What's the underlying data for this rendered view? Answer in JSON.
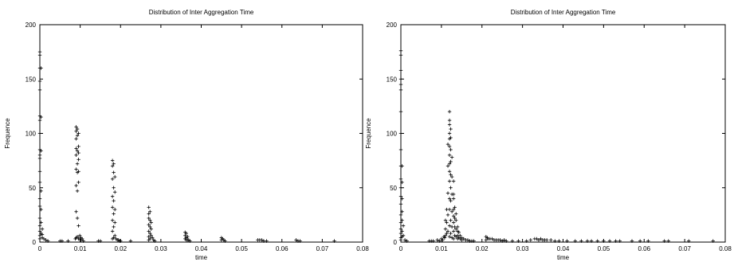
{
  "chart_data": [
    {
      "type": "scatter",
      "title": "Distribution of Inter Aggregation Time",
      "xlabel": "time",
      "ylabel": "Frequence",
      "xlim": [
        0,
        0.08
      ],
      "ylim": [
        0,
        200
      ],
      "xticks": [
        "0",
        "0.01",
        "0.02",
        "0.03",
        "0.04",
        "0.05",
        "0.06",
        "0.07",
        "0.08"
      ],
      "yticks": [
        "0",
        "50",
        "100",
        "150",
        "200"
      ],
      "grid": false,
      "marker": "+",
      "points": [
        [
          0,
          175
        ],
        [
          0,
          172
        ],
        [
          0,
          160
        ],
        [
          0,
          148
        ],
        [
          0,
          140
        ],
        [
          0,
          116
        ],
        [
          0,
          112
        ],
        [
          0,
          100
        ],
        [
          0,
          85
        ],
        [
          0,
          80
        ],
        [
          0,
          77
        ],
        [
          0,
          65
        ],
        [
          0,
          55
        ],
        [
          0,
          40
        ],
        [
          0,
          33
        ],
        [
          0,
          22
        ],
        [
          0,
          15
        ],
        [
          0,
          10
        ],
        [
          0,
          6
        ],
        [
          0,
          3
        ],
        [
          0.0003,
          160
        ],
        [
          0.0003,
          115
        ],
        [
          0.0003,
          84
        ],
        [
          0.0003,
          47
        ],
        [
          0.0003,
          30
        ],
        [
          0.0003,
          18
        ],
        [
          0.0003,
          8
        ],
        [
          0.0006,
          12
        ],
        [
          0.0006,
          7
        ],
        [
          0.0006,
          4
        ],
        [
          0.001,
          3
        ],
        [
          0.0015,
          2
        ],
        [
          0.002,
          1
        ],
        [
          0.005,
          1
        ],
        [
          0.0055,
          1
        ],
        [
          0.007,
          1
        ],
        [
          0.0088,
          3
        ],
        [
          0.009,
          106
        ],
        [
          0.009,
          102
        ],
        [
          0.009,
          95
        ],
        [
          0.009,
          86
        ],
        [
          0.009,
          80
        ],
        [
          0.009,
          67
        ],
        [
          0.009,
          52
        ],
        [
          0.009,
          28
        ],
        [
          0.009,
          4
        ],
        [
          0.0093,
          104
        ],
        [
          0.0093,
          98
        ],
        [
          0.0093,
          84
        ],
        [
          0.0093,
          72
        ],
        [
          0.0093,
          64
        ],
        [
          0.0093,
          47
        ],
        [
          0.0093,
          22
        ],
        [
          0.0093,
          5
        ],
        [
          0.0096,
          100
        ],
        [
          0.0096,
          88
        ],
        [
          0.0096,
          82
        ],
        [
          0.0096,
          76
        ],
        [
          0.0096,
          65
        ],
        [
          0.0096,
          55
        ],
        [
          0.0096,
          15
        ],
        [
          0.0096,
          3
        ],
        [
          0.0099,
          6
        ],
        [
          0.0099,
          3
        ],
        [
          0.0102,
          4
        ],
        [
          0.0102,
          2
        ],
        [
          0.0105,
          3
        ],
        [
          0.0108,
          1
        ],
        [
          0.0145,
          1
        ],
        [
          0.015,
          1
        ],
        [
          0.018,
          75
        ],
        [
          0.018,
          70
        ],
        [
          0.018,
          58
        ],
        [
          0.018,
          42
        ],
        [
          0.018,
          32
        ],
        [
          0.018,
          20
        ],
        [
          0.018,
          10
        ],
        [
          0.018,
          3
        ],
        [
          0.0183,
          72
        ],
        [
          0.0183,
          64
        ],
        [
          0.0183,
          50
        ],
        [
          0.0183,
          38
        ],
        [
          0.0183,
          26
        ],
        [
          0.0183,
          14
        ],
        [
          0.0183,
          4
        ],
        [
          0.0186,
          60
        ],
        [
          0.0186,
          46
        ],
        [
          0.0186,
          30
        ],
        [
          0.0186,
          18
        ],
        [
          0.0186,
          6
        ],
        [
          0.0189,
          3
        ],
        [
          0.0192,
          2
        ],
        [
          0.0195,
          2
        ],
        [
          0.0198,
          1
        ],
        [
          0.02,
          1
        ],
        [
          0.0225,
          1
        ],
        [
          0.027,
          32
        ],
        [
          0.027,
          26
        ],
        [
          0.027,
          22
        ],
        [
          0.027,
          16
        ],
        [
          0.027,
          10
        ],
        [
          0.027,
          5
        ],
        [
          0.027,
          2
        ],
        [
          0.0273,
          28
        ],
        [
          0.0273,
          20
        ],
        [
          0.0273,
          14
        ],
        [
          0.0273,
          8
        ],
        [
          0.0273,
          3
        ],
        [
          0.0276,
          18
        ],
        [
          0.0276,
          12
        ],
        [
          0.0276,
          6
        ],
        [
          0.0279,
          4
        ],
        [
          0.0282,
          2
        ],
        [
          0.0285,
          1
        ],
        [
          0.036,
          9
        ],
        [
          0.036,
          6
        ],
        [
          0.036,
          3
        ],
        [
          0.0363,
          8
        ],
        [
          0.0363,
          4
        ],
        [
          0.0363,
          2
        ],
        [
          0.0366,
          5
        ],
        [
          0.0366,
          2
        ],
        [
          0.0369,
          2
        ],
        [
          0.0372,
          1
        ],
        [
          0.045,
          4
        ],
        [
          0.045,
          2
        ],
        [
          0.0453,
          3
        ],
        [
          0.0456,
          2
        ],
        [
          0.0459,
          1
        ],
        [
          0.054,
          2
        ],
        [
          0.0545,
          2
        ],
        [
          0.055,
          2
        ],
        [
          0.0555,
          1
        ],
        [
          0.0562,
          1
        ],
        [
          0.0635,
          2
        ],
        [
          0.064,
          1
        ],
        [
          0.0645,
          1
        ],
        [
          0.073,
          1
        ]
      ]
    },
    {
      "type": "scatter",
      "title": "Distribution of Inter Aggregation Time",
      "xlabel": "time",
      "ylabel": "Frequence",
      "xlim": [
        0,
        0.08
      ],
      "ylim": [
        0,
        200
      ],
      "xticks": [
        "0",
        "0.01",
        "0.02",
        "0.03",
        "0.04",
        "0.05",
        "0.06",
        "0.07",
        "0.08"
      ],
      "yticks": [
        "0",
        "50",
        "100",
        "150",
        "200"
      ],
      "grid": false,
      "marker": "+",
      "points": [
        [
          0,
          176
        ],
        [
          0,
          172
        ],
        [
          0,
          158
        ],
        [
          0,
          150
        ],
        [
          0,
          145
        ],
        [
          0,
          140
        ],
        [
          0,
          120
        ],
        [
          0,
          100
        ],
        [
          0,
          85
        ],
        [
          0,
          70
        ],
        [
          0,
          58
        ],
        [
          0,
          50
        ],
        [
          0,
          42
        ],
        [
          0,
          35
        ],
        [
          0,
          25
        ],
        [
          0,
          18
        ],
        [
          0,
          12
        ],
        [
          0,
          8
        ],
        [
          0,
          4
        ],
        [
          0,
          2
        ],
        [
          0.0003,
          70
        ],
        [
          0.0003,
          55
        ],
        [
          0.0003,
          40
        ],
        [
          0.0003,
          28
        ],
        [
          0.0003,
          20
        ],
        [
          0.0003,
          10
        ],
        [
          0.0003,
          5
        ],
        [
          0.0006,
          15
        ],
        [
          0.0006,
          6
        ],
        [
          0.001,
          2
        ],
        [
          0.0015,
          1
        ],
        [
          0.007,
          1
        ],
        [
          0.0075,
          1
        ],
        [
          0.008,
          1
        ],
        [
          0.009,
          2
        ],
        [
          0.0095,
          1
        ],
        [
          0.01,
          3
        ],
        [
          0.0103,
          2
        ],
        [
          0.0106,
          5
        ],
        [
          0.0108,
          4
        ],
        [
          0.011,
          20
        ],
        [
          0.011,
          12
        ],
        [
          0.011,
          6
        ],
        [
          0.0113,
          30
        ],
        [
          0.0113,
          18
        ],
        [
          0.0113,
          8
        ],
        [
          0.0116,
          90
        ],
        [
          0.0116,
          70
        ],
        [
          0.0116,
          45
        ],
        [
          0.0116,
          25
        ],
        [
          0.0116,
          10
        ],
        [
          0.012,
          120
        ],
        [
          0.012,
          112
        ],
        [
          0.012,
          108
        ],
        [
          0.012,
          100
        ],
        [
          0.012,
          95
        ],
        [
          0.012,
          88
        ],
        [
          0.012,
          80
        ],
        [
          0.012,
          72
        ],
        [
          0.012,
          65
        ],
        [
          0.012,
          56
        ],
        [
          0.012,
          40
        ],
        [
          0.012,
          30
        ],
        [
          0.012,
          15
        ],
        [
          0.012,
          5
        ],
        [
          0.0123,
          104
        ],
        [
          0.0123,
          96
        ],
        [
          0.0123,
          85
        ],
        [
          0.0123,
          74
        ],
        [
          0.0123,
          62
        ],
        [
          0.0123,
          50
        ],
        [
          0.0123,
          38
        ],
        [
          0.0123,
          20
        ],
        [
          0.0123,
          8
        ],
        [
          0.0126,
          78
        ],
        [
          0.0126,
          60
        ],
        [
          0.0126,
          44
        ],
        [
          0.0126,
          28
        ],
        [
          0.0126,
          14
        ],
        [
          0.0126,
          4
        ],
        [
          0.013,
          56
        ],
        [
          0.013,
          44
        ],
        [
          0.013,
          40
        ],
        [
          0.013,
          30
        ],
        [
          0.013,
          24
        ],
        [
          0.013,
          18
        ],
        [
          0.013,
          10
        ],
        [
          0.013,
          3
        ],
        [
          0.0133,
          32
        ],
        [
          0.0133,
          22
        ],
        [
          0.0133,
          14
        ],
        [
          0.0133,
          6
        ],
        [
          0.0136,
          26
        ],
        [
          0.0136,
          20
        ],
        [
          0.0136,
          12
        ],
        [
          0.0136,
          5
        ],
        [
          0.014,
          14
        ],
        [
          0.014,
          10
        ],
        [
          0.014,
          6
        ],
        [
          0.014,
          3
        ],
        [
          0.0143,
          9
        ],
        [
          0.0143,
          4
        ],
        [
          0.0146,
          6
        ],
        [
          0.0146,
          3
        ],
        [
          0.015,
          4
        ],
        [
          0.015,
          2
        ],
        [
          0.0155,
          3
        ],
        [
          0.016,
          2
        ],
        [
          0.0165,
          2
        ],
        [
          0.017,
          1
        ],
        [
          0.0175,
          1
        ],
        [
          0.018,
          1
        ],
        [
          0.021,
          5
        ],
        [
          0.021,
          2
        ],
        [
          0.0213,
          4
        ],
        [
          0.0216,
          3
        ],
        [
          0.022,
          3
        ],
        [
          0.0225,
          3
        ],
        [
          0.023,
          2
        ],
        [
          0.0235,
          2
        ],
        [
          0.024,
          2
        ],
        [
          0.0245,
          2
        ],
        [
          0.025,
          1
        ],
        [
          0.0255,
          2
        ],
        [
          0.026,
          1
        ],
        [
          0.0275,
          1
        ],
        [
          0.029,
          1
        ],
        [
          0.031,
          1
        ],
        [
          0.032,
          2
        ],
        [
          0.033,
          3
        ],
        [
          0.0335,
          3
        ],
        [
          0.034,
          2
        ],
        [
          0.0345,
          3
        ],
        [
          0.035,
          2
        ],
        [
          0.0355,
          2
        ],
        [
          0.036,
          2
        ],
        [
          0.037,
          2
        ],
        [
          0.038,
          1
        ],
        [
          0.039,
          1
        ],
        [
          0.041,
          1
        ],
        [
          0.043,
          1
        ],
        [
          0.0445,
          1
        ],
        [
          0.046,
          1
        ],
        [
          0.047,
          1
        ],
        [
          0.0485,
          1
        ],
        [
          0.05,
          1
        ],
        [
          0.0515,
          1
        ],
        [
          0.053,
          1
        ],
        [
          0.054,
          1
        ],
        [
          0.057,
          1
        ],
        [
          0.059,
          1
        ],
        [
          0.061,
          1
        ],
        [
          0.065,
          1
        ],
        [
          0.066,
          1
        ],
        [
          0.071,
          1
        ],
        [
          0.077,
          1
        ]
      ]
    }
  ]
}
